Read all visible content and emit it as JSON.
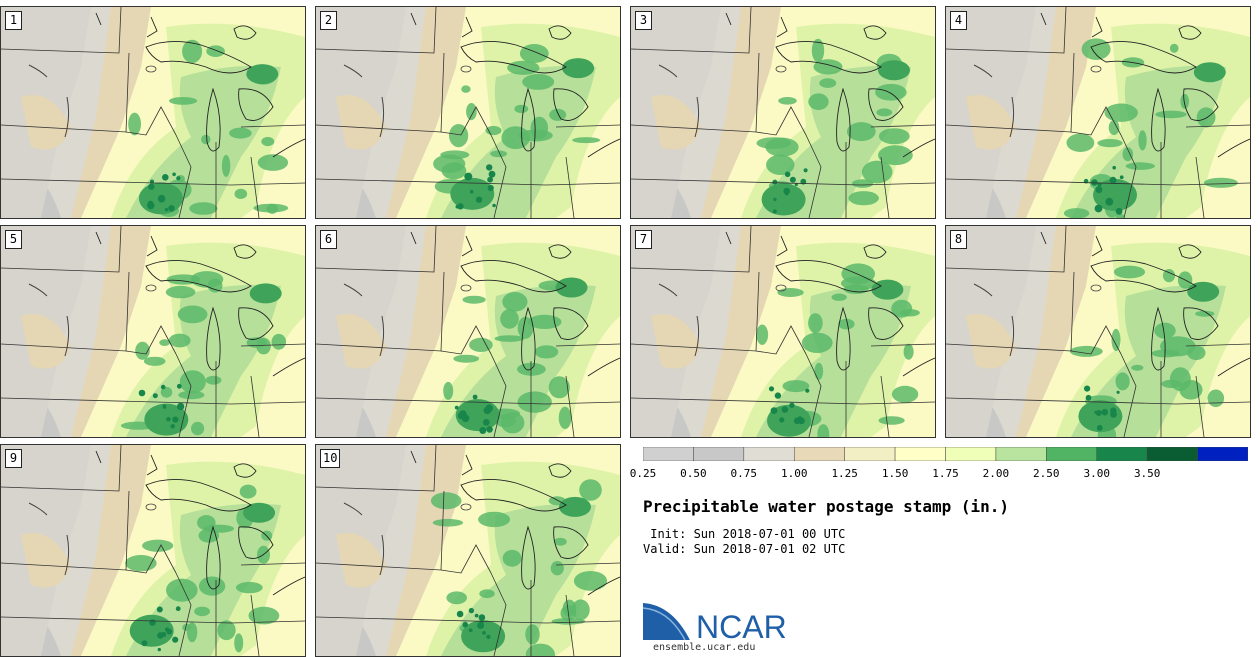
{
  "panels": [
    {
      "label": "1"
    },
    {
      "label": "2"
    },
    {
      "label": "3"
    },
    {
      "label": "4"
    },
    {
      "label": "5"
    },
    {
      "label": "6"
    },
    {
      "label": "7"
    },
    {
      "label": "8"
    },
    {
      "label": "9"
    },
    {
      "label": "10"
    }
  ],
  "colorbar": {
    "levels": [
      "0.25",
      "0.50",
      "0.75",
      "1.00",
      "1.25",
      "1.50",
      "1.75",
      "2.00",
      "2.50",
      "3.00",
      "3.50"
    ],
    "colors": [
      "#d0d0d0",
      "#c8c8c8",
      "#e0ded4",
      "#e8d9b8",
      "#f2efc4",
      "#ffffc8",
      "#f0ffb8",
      "#b8e4a0",
      "#50b464",
      "#18864a",
      "#0a5c32",
      "#0020c0"
    ]
  },
  "title": "Precipitable water postage stamp (in.)",
  "init": " Init: Sun 2018-07-01 00 UTC",
  "valid": "Valid: Sun 2018-07-01 02 UTC",
  "logo": {
    "text": "NCAR",
    "url": "ensemble.ucar.edu",
    "color": "#1e5fa8"
  }
}
